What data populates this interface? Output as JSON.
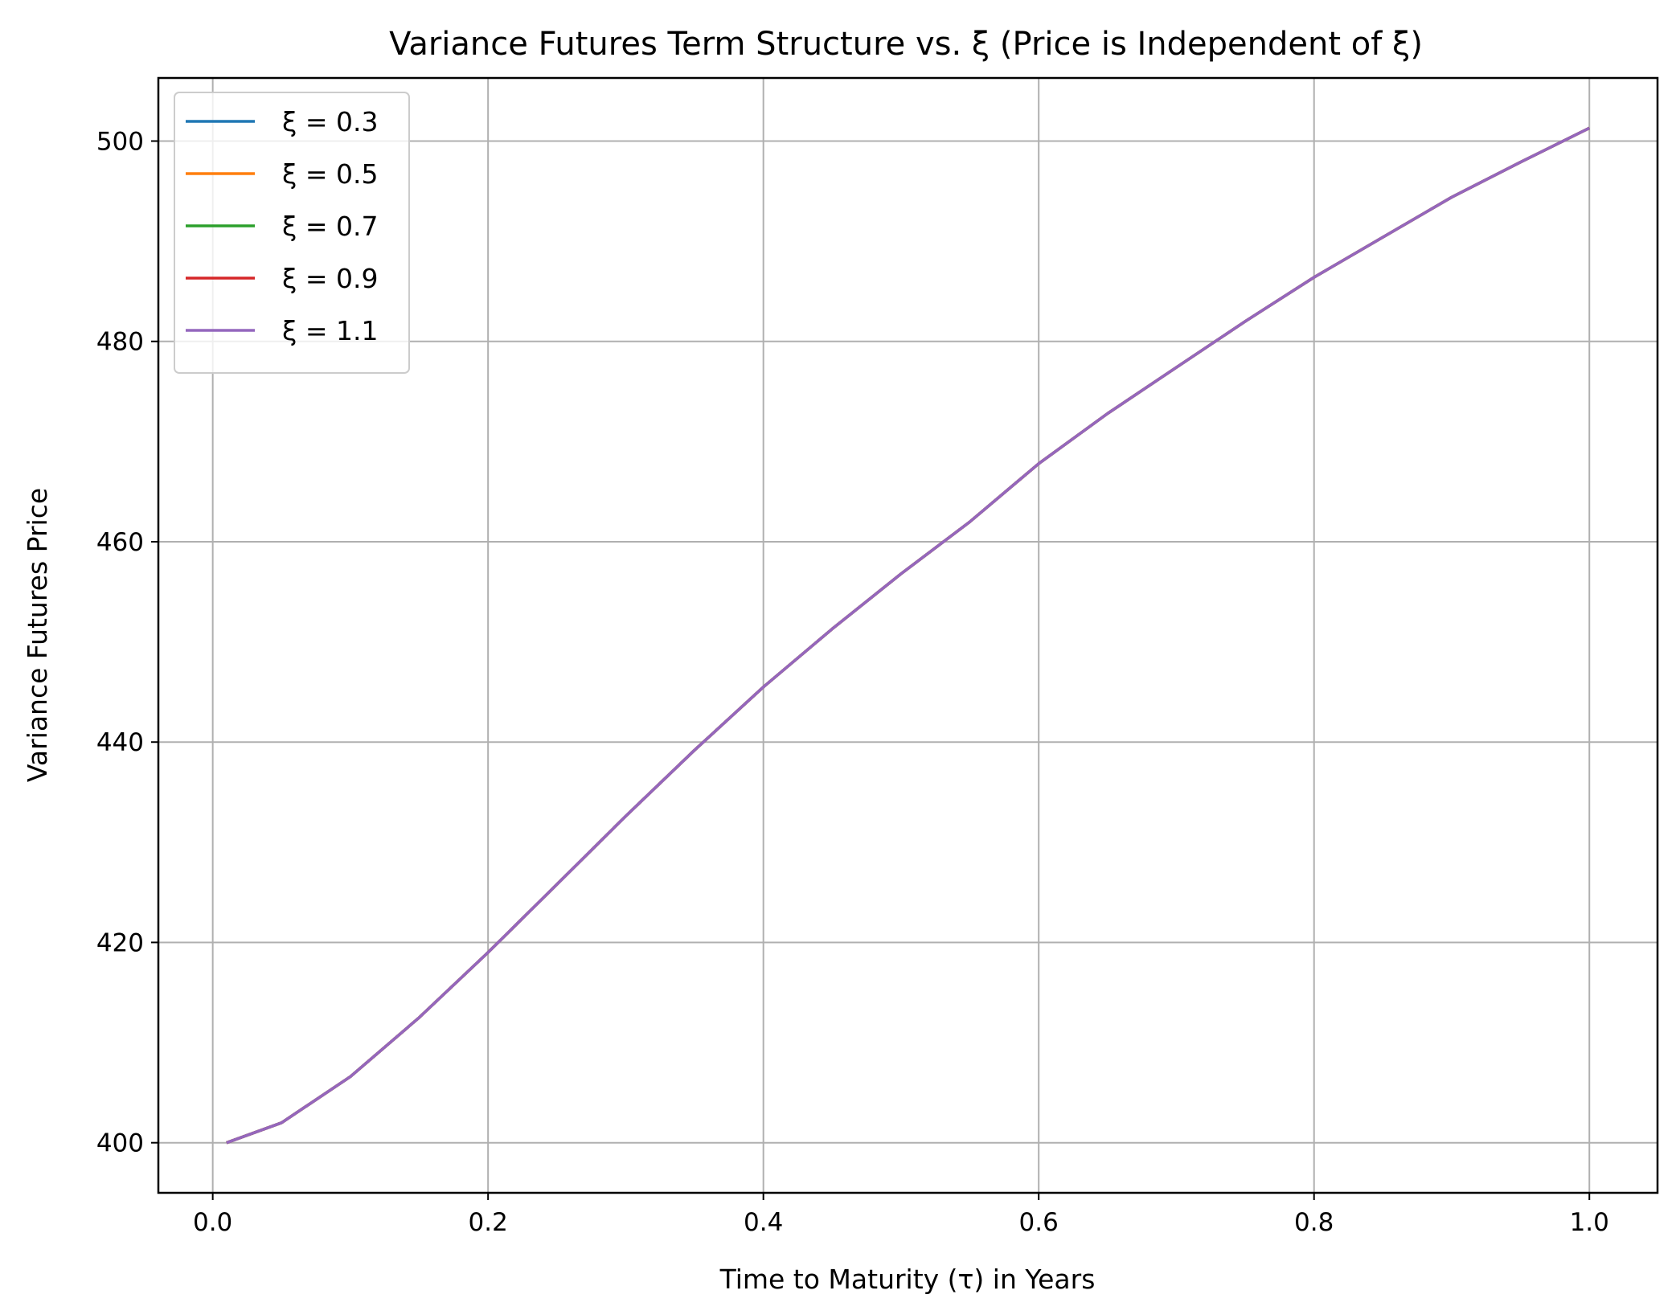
{
  "chart_data": {
    "type": "line",
    "title": "Variance Futures Term Structure vs. ξ (Price is Independent of ξ)",
    "xlabel": "Time to Maturity (τ) in Years",
    "ylabel": "Variance Futures Price",
    "xlim": [
      -0.0395,
      1.0495
    ],
    "ylim": [
      395,
      506.3
    ],
    "grid": true,
    "legend_position": "top-left",
    "x_ticks": [
      "0.0",
      "0.2",
      "0.4",
      "0.6",
      "0.8",
      "1.0"
    ],
    "x_tick_values": [
      0.0,
      0.2,
      0.4,
      0.6,
      0.8,
      1.0
    ],
    "y_ticks": [
      "400",
      "420",
      "440",
      "460",
      "480",
      "500"
    ],
    "y_tick_values": [
      400,
      420,
      440,
      460,
      480,
      500
    ],
    "x": [
      0.01,
      0.05,
      0.1,
      0.15,
      0.2,
      0.25,
      0.3,
      0.35,
      0.4,
      0.45,
      0.5,
      0.55,
      0.6,
      0.65,
      0.7,
      0.75,
      0.8,
      0.85,
      0.9,
      0.95,
      1.0
    ],
    "series": [
      {
        "name": "ξ = 0.3",
        "color": "#1f77b4",
        "values": [
          400.0,
          402.0,
          406.6,
          412.5,
          419.0,
          425.8,
          432.6,
          439.2,
          445.5,
          451.3,
          456.8,
          462.0,
          467.8,
          472.8,
          477.4,
          482.0,
          486.4,
          490.4,
          494.4,
          497.9,
          501.3
        ]
      },
      {
        "name": "ξ = 0.5",
        "color": "#ff7f0e",
        "values": [
          400.0,
          402.0,
          406.6,
          412.5,
          419.0,
          425.8,
          432.6,
          439.2,
          445.5,
          451.3,
          456.8,
          462.0,
          467.8,
          472.8,
          477.4,
          482.0,
          486.4,
          490.4,
          494.4,
          497.9,
          501.3
        ]
      },
      {
        "name": "ξ = 0.7",
        "color": "#2ca02c",
        "values": [
          400.0,
          402.0,
          406.6,
          412.5,
          419.0,
          425.8,
          432.6,
          439.2,
          445.5,
          451.3,
          456.8,
          462.0,
          467.8,
          472.8,
          477.4,
          482.0,
          486.4,
          490.4,
          494.4,
          497.9,
          501.3
        ]
      },
      {
        "name": "ξ = 0.9",
        "color": "#d62728",
        "values": [
          400.0,
          402.0,
          406.6,
          412.5,
          419.0,
          425.8,
          432.6,
          439.2,
          445.5,
          451.3,
          456.8,
          462.0,
          467.8,
          472.8,
          477.4,
          482.0,
          486.4,
          490.4,
          494.4,
          497.9,
          501.3
        ]
      },
      {
        "name": "ξ = 1.1",
        "color": "#9467bd",
        "values": [
          400.0,
          402.0,
          406.6,
          412.5,
          419.0,
          425.8,
          432.6,
          439.2,
          445.5,
          451.3,
          456.8,
          462.0,
          467.8,
          472.8,
          477.4,
          482.0,
          486.4,
          490.4,
          494.4,
          497.9,
          501.3
        ]
      }
    ]
  }
}
